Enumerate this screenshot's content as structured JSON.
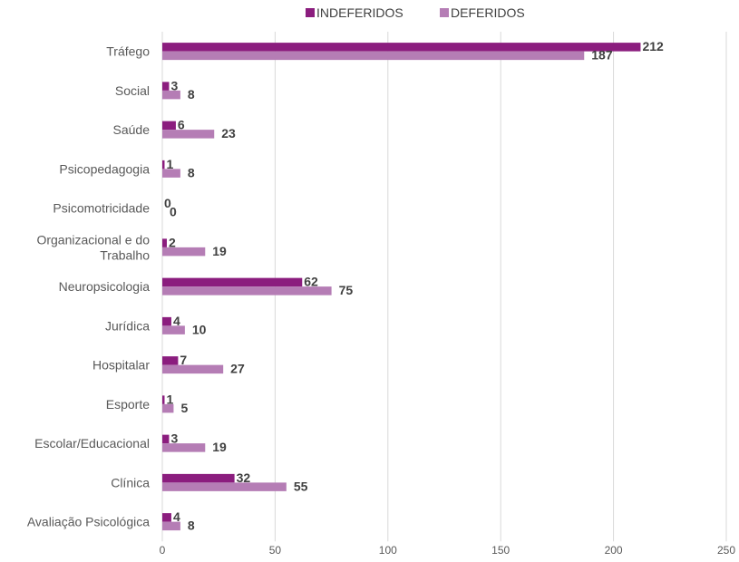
{
  "chart_data": {
    "type": "bar",
    "orientation": "horizontal",
    "categories": [
      "Tráfego",
      "Social",
      "Saúde",
      "Psicopedagogia",
      "Psicomotricidade",
      "Organizacional e do Trabalho",
      "Neuropsicologia",
      "Jurídica",
      "Hospitalar",
      "Esporte",
      "Escolar/Educacional",
      "Clínica",
      "Avaliação Psicológica"
    ],
    "category_label_lines": [
      [
        "Tráfego"
      ],
      [
        "Social"
      ],
      [
        "Saúde"
      ],
      [
        "Psicopedagogia"
      ],
      [
        "Psicomotricidade"
      ],
      [
        "Organizacional e do",
        "Trabalho"
      ],
      [
        "Neuropsicologia"
      ],
      [
        "Jurídica"
      ],
      [
        "Hospitalar"
      ],
      [
        "Esporte"
      ],
      [
        "Escolar/Educacional"
      ],
      [
        "Clínica"
      ],
      [
        "Avaliação Psicológica"
      ]
    ],
    "series": [
      {
        "name": "INDEFERIDOS",
        "color": "#8B1D7E",
        "values": [
          212,
          3,
          6,
          1,
          0,
          2,
          62,
          4,
          7,
          1,
          3,
          32,
          4
        ]
      },
      {
        "name": "DEFERIDOS",
        "color": "#B57DB5",
        "values": [
          187,
          8,
          23,
          8,
          0,
          19,
          75,
          10,
          27,
          5,
          19,
          55,
          8
        ]
      }
    ],
    "xlim": [
      0,
      250
    ],
    "xticks": [
      0,
      50,
      100,
      150,
      200,
      250
    ],
    "grid": true,
    "legend": "top",
    "data_labels": true
  }
}
